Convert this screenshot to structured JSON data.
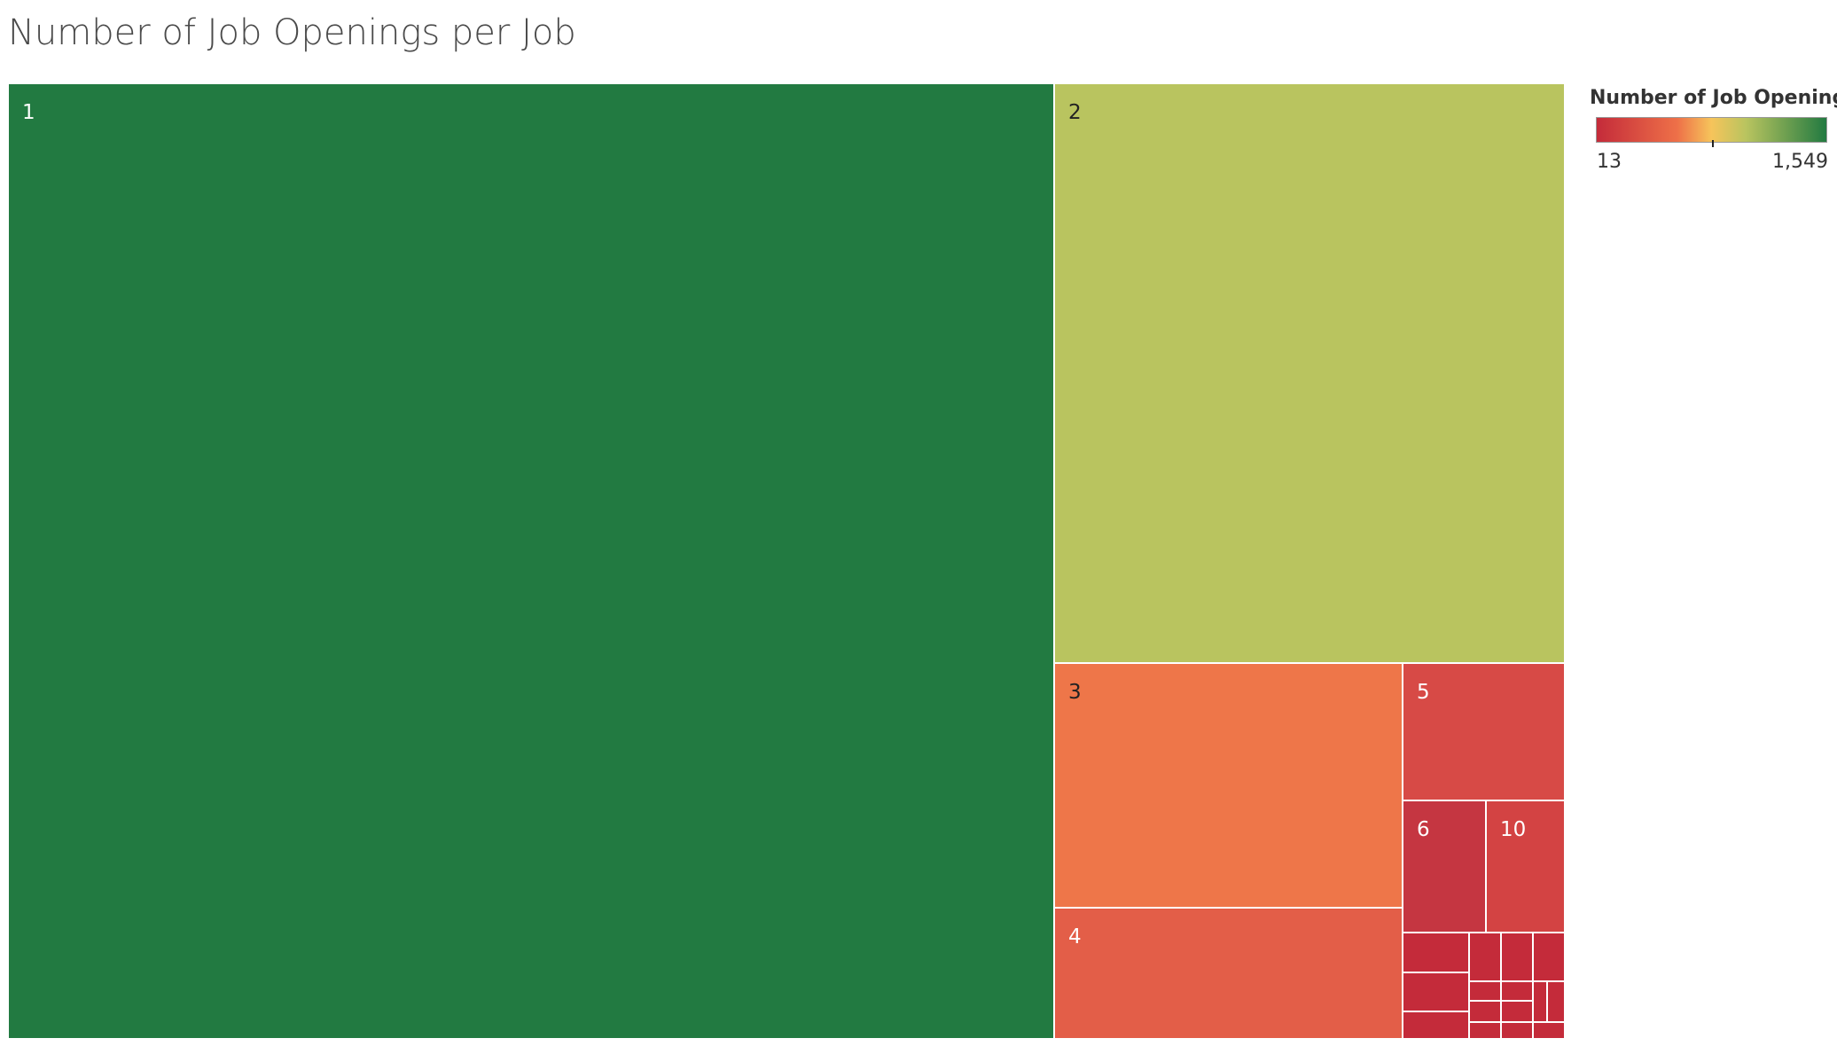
{
  "title": "Number of Job Openings per Job",
  "legend": {
    "title": "Number of Job Openings",
    "min_label": "13",
    "max_label": "1,549",
    "colors": {
      "low": "#c42b3a",
      "mid_low": "#ee7048",
      "mid": "#f6c45b",
      "mid_high": "#b9c45f",
      "high": "#227a41"
    }
  },
  "chart_data": {
    "type": "treemap",
    "title": "Number of Job Openings per Job",
    "color_legend": "Number of Job Openings",
    "color_range": [
      13,
      1549
    ],
    "items": [
      {
        "label": "1",
        "value": 1549,
        "color": "#227a41",
        "label_color": "#ffffff"
      },
      {
        "label": "2",
        "value": 404,
        "color": "#b9c45f",
        "label_color": "#222222"
      },
      {
        "label": "3",
        "value": 136,
        "color": "#ee7649",
        "label_color": "#222222"
      },
      {
        "label": "4",
        "value": 73,
        "color": "#e35e48",
        "label_color": "#ffffff"
      },
      {
        "label": "5",
        "value": 35,
        "color": "#d74a46",
        "label_color": "#ffffff"
      },
      {
        "label": "6",
        "value": 18,
        "color": "#c53641",
        "label_color": "#ffffff"
      },
      {
        "label": "10",
        "value": 17,
        "color": "#d34343",
        "label_color": "#ffffff"
      },
      {
        "label": "",
        "value": 13,
        "color": "#c42b3a",
        "label_color": "#ffffff"
      },
      {
        "label": "",
        "value": 13,
        "color": "#c42b3a",
        "label_color": "#ffffff"
      },
      {
        "label": "",
        "value": 13,
        "color": "#c42b3a",
        "label_color": "#ffffff"
      },
      {
        "label": "",
        "value": 13,
        "color": "#c42b3a",
        "label_color": "#ffffff"
      },
      {
        "label": "",
        "value": 13,
        "color": "#c42b3a",
        "label_color": "#ffffff"
      },
      {
        "label": "",
        "value": 13,
        "color": "#c42b3a",
        "label_color": "#ffffff"
      },
      {
        "label": "",
        "value": 13,
        "color": "#c42b3a",
        "label_color": "#ffffff"
      },
      {
        "label": "",
        "value": 13,
        "color": "#c42b3a",
        "label_color": "#ffffff"
      },
      {
        "label": "",
        "value": 13,
        "color": "#c42b3a",
        "label_color": "#ffffff"
      },
      {
        "label": "",
        "value": 13,
        "color": "#c42b3a",
        "label_color": "#ffffff"
      },
      {
        "label": "",
        "value": 13,
        "color": "#c42b3a",
        "label_color": "#ffffff"
      },
      {
        "label": "",
        "value": 13,
        "color": "#c42b3a",
        "label_color": "#ffffff"
      },
      {
        "label": "",
        "value": 13,
        "color": "#c42b3a",
        "label_color": "#ffffff"
      },
      {
        "label": "",
        "value": 13,
        "color": "#c42b3a",
        "label_color": "#ffffff"
      },
      {
        "label": "",
        "value": 13,
        "color": "#c42b3a",
        "label_color": "#ffffff"
      }
    ]
  }
}
